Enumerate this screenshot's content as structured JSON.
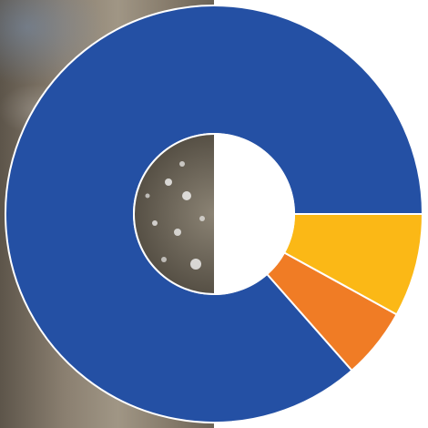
{
  "chart_data": {
    "type": "pie",
    "style": "donut",
    "categories": [
      "",
      "",
      ""
    ],
    "values": [
      86.5,
      5.5,
      8.0
    ],
    "colors": [
      "#2450a4",
      "#f07c25",
      "#fbb816"
    ],
    "start_angle_deg": 0,
    "direction": "counterclockwise",
    "legend": "none",
    "title": ""
  },
  "background": {
    "photo_description_icon": "wet-glass-droplets-photo"
  }
}
